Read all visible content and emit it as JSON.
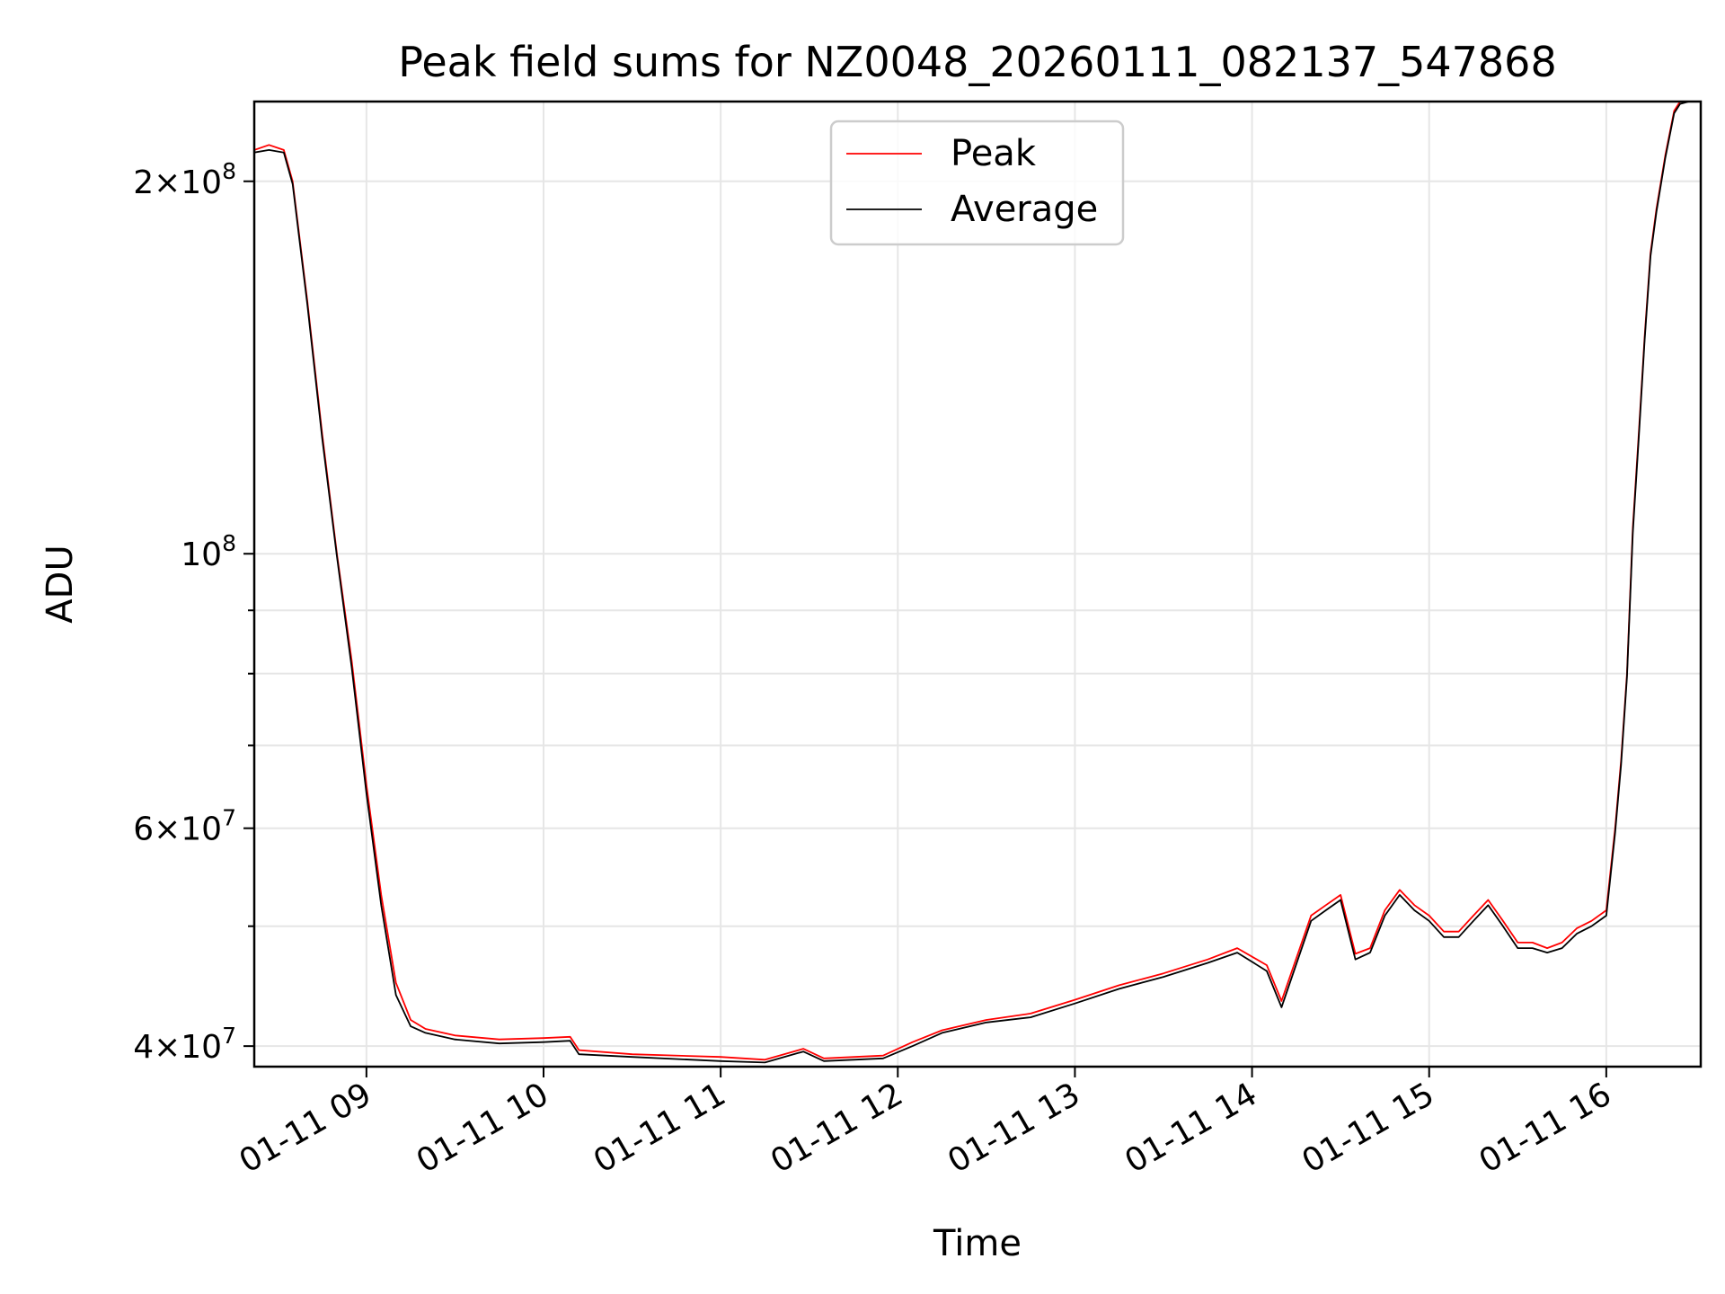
{
  "chart_data": {
    "type": "line",
    "title": "Peak field sums for NZ0048_20260111_082137_547868",
    "xlabel": "Time",
    "ylabel": "ADU",
    "yscale": "log",
    "grid": true,
    "legend_position": "top-center",
    "xlim": [
      "2026-01-11 08:22",
      "2026-01-11 16:32"
    ],
    "ylim": [
      38500000,
      232000000
    ],
    "x_ticks": [
      {
        "value": "2026-01-11 09:00",
        "label": "01-11 09"
      },
      {
        "value": "2026-01-11 10:00",
        "label": "01-11 10"
      },
      {
        "value": "2026-01-11 11:00",
        "label": "01-11 11"
      },
      {
        "value": "2026-01-11 12:00",
        "label": "01-11 12"
      },
      {
        "value": "2026-01-11 13:00",
        "label": "01-11 13"
      },
      {
        "value": "2026-01-11 14:00",
        "label": "01-11 14"
      },
      {
        "value": "2026-01-11 15:00",
        "label": "01-11 15"
      },
      {
        "value": "2026-01-11 16:00",
        "label": "01-11 16"
      }
    ],
    "y_ticks_major": [
      {
        "value": 40000000,
        "mant": "4",
        "exp": "7"
      },
      {
        "value": 60000000,
        "mant": "6",
        "exp": "7"
      },
      {
        "value": 100000000,
        "mant": "",
        "exp": "8"
      },
      {
        "value": 200000000,
        "mant": "2",
        "exp": "8"
      }
    ],
    "y_ticks_minor": [
      50000000,
      70000000,
      80000000,
      90000000
    ],
    "series": [
      {
        "name": "Peak",
        "color": "#ff0000",
        "x": [
          "2026-01-11 08:22",
          "2026-01-11 08:27",
          "2026-01-11 08:32",
          "2026-01-11 08:35",
          "2026-01-11 08:40",
          "2026-01-11 08:45",
          "2026-01-11 08:50",
          "2026-01-11 08:55",
          "2026-01-11 09:00",
          "2026-01-11 09:05",
          "2026-01-11 09:10",
          "2026-01-11 09:15",
          "2026-01-11 09:20",
          "2026-01-11 09:30",
          "2026-01-11 09:45",
          "2026-01-11 10:00",
          "2026-01-11 10:09",
          "2026-01-11 10:12",
          "2026-01-11 10:30",
          "2026-01-11 11:00",
          "2026-01-11 11:15",
          "2026-01-11 11:28",
          "2026-01-11 11:35",
          "2026-01-11 11:55",
          "2026-01-11 12:05",
          "2026-01-11 12:15",
          "2026-01-11 12:30",
          "2026-01-11 12:45",
          "2026-01-11 13:00",
          "2026-01-11 13:15",
          "2026-01-11 13:30",
          "2026-01-11 13:45",
          "2026-01-11 13:55",
          "2026-01-11 14:05",
          "2026-01-11 14:10",
          "2026-01-11 14:20",
          "2026-01-11 14:25",
          "2026-01-11 14:30",
          "2026-01-11 14:35",
          "2026-01-11 14:40",
          "2026-01-11 14:45",
          "2026-01-11 14:50",
          "2026-01-11 14:55",
          "2026-01-11 15:00",
          "2026-01-11 15:05",
          "2026-01-11 15:10",
          "2026-01-11 15:15",
          "2026-01-11 15:20",
          "2026-01-11 15:25",
          "2026-01-11 15:30",
          "2026-01-11 15:35",
          "2026-01-11 15:40",
          "2026-01-11 15:45",
          "2026-01-11 15:50",
          "2026-01-11 15:55",
          "2026-01-11 16:00",
          "2026-01-11 16:03",
          "2026-01-11 16:05",
          "2026-01-11 16:07",
          "2026-01-11 16:09",
          "2026-01-11 16:11",
          "2026-01-11 16:13",
          "2026-01-11 16:15",
          "2026-01-11 16:17",
          "2026-01-11 16:20",
          "2026-01-11 16:23",
          "2026-01-11 16:25",
          "2026-01-11 16:28",
          "2026-01-11 16:32"
        ],
        "values": [
          212000000,
          214000000,
          212000000,
          200000000,
          160000000,
          125000000,
          100000000,
          82000000,
          65000000,
          53000000,
          45000000,
          42000000,
          41300000,
          40800000,
          40500000,
          40600000,
          40700000,
          39700000,
          39400000,
          39200000,
          39000000,
          39800000,
          39100000,
          39300000,
          40300000,
          41200000,
          42000000,
          42500000,
          43600000,
          44800000,
          45800000,
          47000000,
          48000000,
          46500000,
          43500000,
          51000000,
          52000000,
          53000000,
          47500000,
          48000000,
          51500000,
          53500000,
          52000000,
          51000000,
          49500000,
          49500000,
          51000000,
          52500000,
          50500000,
          48500000,
          48500000,
          48000000,
          48500000,
          49800000,
          50500000,
          51500000,
          60000000,
          68000000,
          80000000,
          105000000,
          125000000,
          150000000,
          175000000,
          190000000,
          210000000,
          228000000,
          232000000,
          232000000,
          232000000
        ]
      },
      {
        "name": "Average",
        "color": "#000000",
        "x": [
          "2026-01-11 08:22",
          "2026-01-11 08:27",
          "2026-01-11 08:32",
          "2026-01-11 08:35",
          "2026-01-11 08:40",
          "2026-01-11 08:45",
          "2026-01-11 08:50",
          "2026-01-11 08:55",
          "2026-01-11 09:00",
          "2026-01-11 09:05",
          "2026-01-11 09:10",
          "2026-01-11 09:15",
          "2026-01-11 09:20",
          "2026-01-11 09:30",
          "2026-01-11 09:45",
          "2026-01-11 10:00",
          "2026-01-11 10:09",
          "2026-01-11 10:12",
          "2026-01-11 10:30",
          "2026-01-11 11:00",
          "2026-01-11 11:15",
          "2026-01-11 11:28",
          "2026-01-11 11:35",
          "2026-01-11 11:55",
          "2026-01-11 12:05",
          "2026-01-11 12:15",
          "2026-01-11 12:30",
          "2026-01-11 12:45",
          "2026-01-11 13:00",
          "2026-01-11 13:15",
          "2026-01-11 13:30",
          "2026-01-11 13:45",
          "2026-01-11 13:55",
          "2026-01-11 14:05",
          "2026-01-11 14:10",
          "2026-01-11 14:20",
          "2026-01-11 14:25",
          "2026-01-11 14:30",
          "2026-01-11 14:35",
          "2026-01-11 14:40",
          "2026-01-11 14:45",
          "2026-01-11 14:50",
          "2026-01-11 14:55",
          "2026-01-11 15:00",
          "2026-01-11 15:05",
          "2026-01-11 15:10",
          "2026-01-11 15:15",
          "2026-01-11 15:20",
          "2026-01-11 15:25",
          "2026-01-11 15:30",
          "2026-01-11 15:35",
          "2026-01-11 15:40",
          "2026-01-11 15:45",
          "2026-01-11 15:50",
          "2026-01-11 15:55",
          "2026-01-11 16:00",
          "2026-01-11 16:03",
          "2026-01-11 16:05",
          "2026-01-11 16:07",
          "2026-01-11 16:09",
          "2026-01-11 16:11",
          "2026-01-11 16:13",
          "2026-01-11 16:15",
          "2026-01-11 16:17",
          "2026-01-11 16:20",
          "2026-01-11 16:23",
          "2026-01-11 16:25",
          "2026-01-11 16:28",
          "2026-01-11 16:32"
        ],
        "values": [
          211000000,
          212000000,
          211000000,
          199000000,
          159000000,
          124000000,
          99500000,
          81000000,
          64000000,
          52000000,
          44000000,
          41500000,
          41000000,
          40500000,
          40200000,
          40300000,
          40400000,
          39400000,
          39200000,
          38900000,
          38800000,
          39600000,
          38900000,
          39100000,
          40000000,
          41000000,
          41800000,
          42200000,
          43300000,
          44500000,
          45500000,
          46700000,
          47600000,
          46000000,
          43000000,
          50500000,
          51500000,
          52500000,
          47000000,
          47600000,
          51000000,
          53000000,
          51500000,
          50500000,
          49000000,
          49000000,
          50500000,
          52000000,
          50000000,
          48000000,
          48000000,
          47600000,
          48000000,
          49300000,
          50000000,
          51000000,
          59500000,
          67500000,
          79500000,
          104000000,
          124000000,
          149000000,
          174000000,
          189000000,
          209000000,
          227000000,
          231000000,
          232000000,
          232000000
        ]
      }
    ]
  }
}
